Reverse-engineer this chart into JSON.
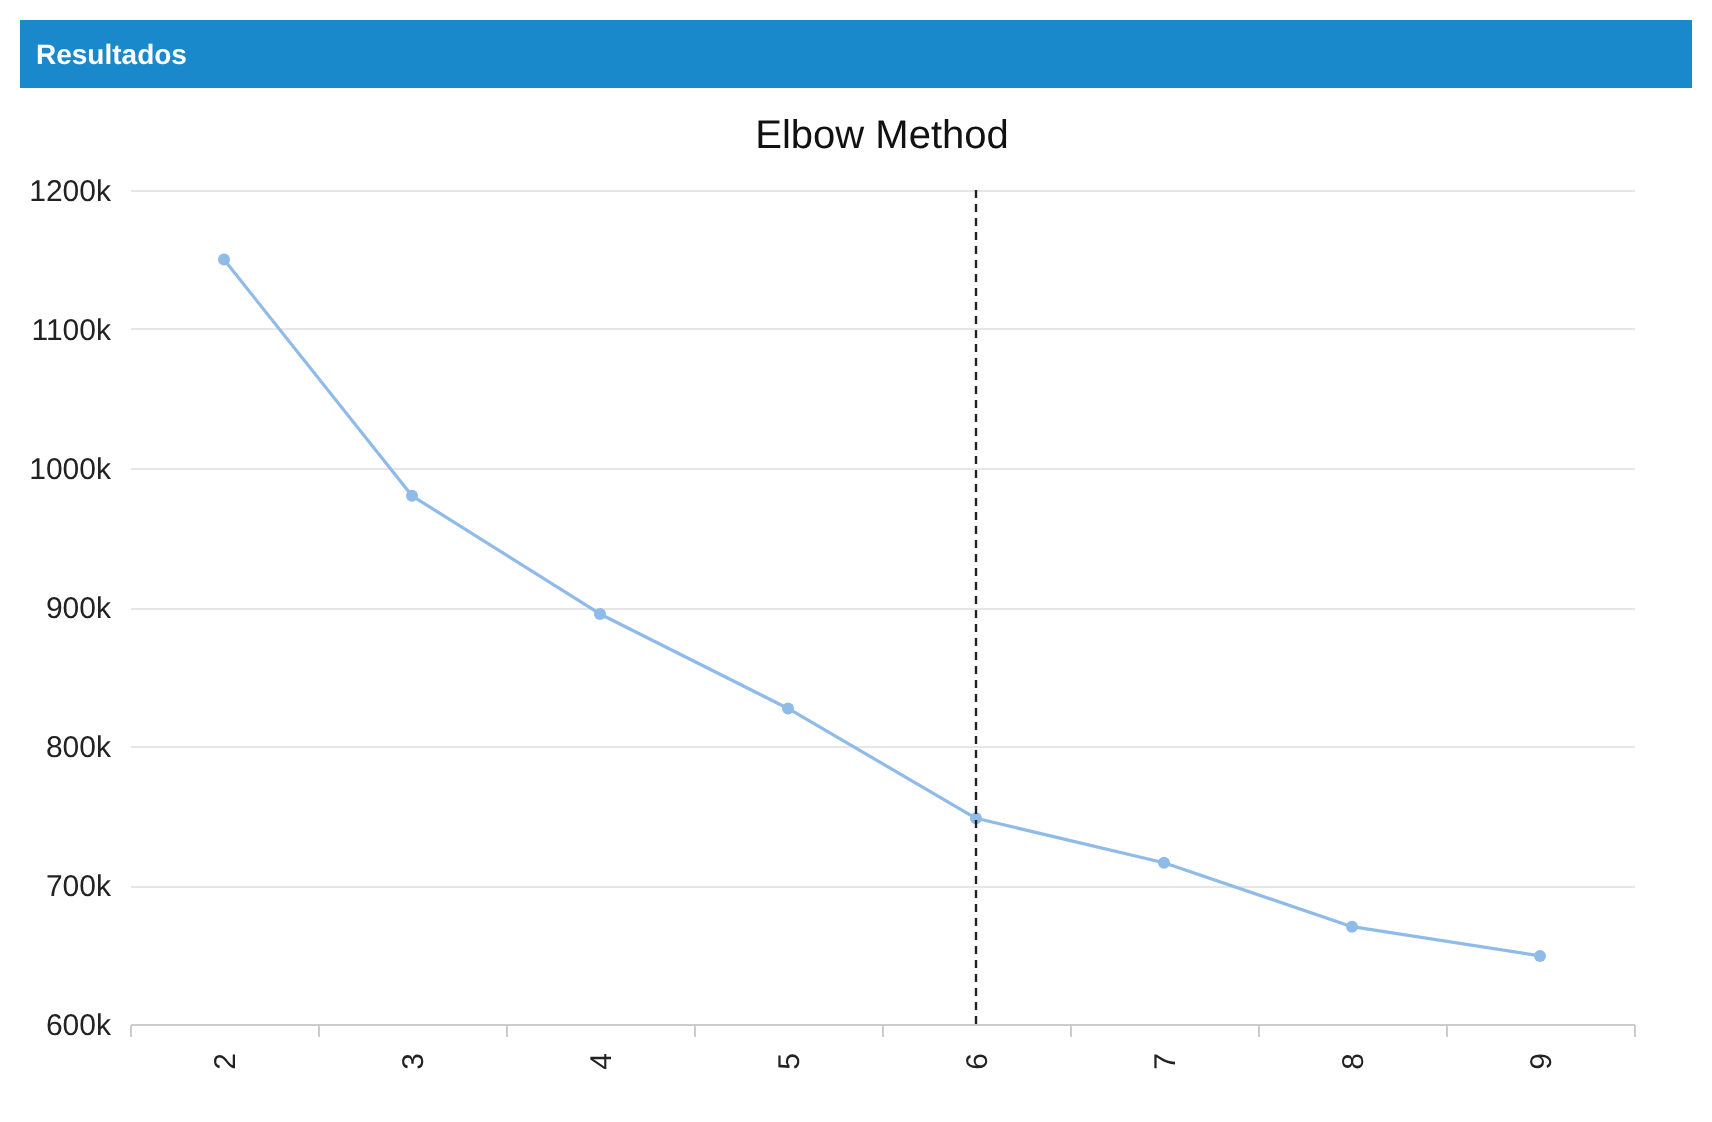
{
  "chart_data": {
    "type": "line",
    "title": "Elbow Method",
    "annotations": [
      "Resultados"
    ],
    "categories": [
      "2",
      "3",
      "4",
      "5",
      "6",
      "7",
      "8",
      "9"
    ],
    "series": [
      {
        "color": "#8fbbe8",
        "values": [
          1150000,
          980000,
          895000,
          827000,
          748000,
          716000,
          670000,
          649000
        ]
      }
    ],
    "ylim": [
      600000,
      1200000
    ],
    "yticks": [
      {
        "value": 600000,
        "label": "600k"
      },
      {
        "value": 700000,
        "label": "700k"
      },
      {
        "value": 800000,
        "label": "800k"
      },
      {
        "value": 900000,
        "label": "900k"
      },
      {
        "value": 1000000,
        "label": "1000k"
      },
      {
        "value": 1100000,
        "label": "1100k"
      },
      {
        "value": 1200000,
        "label": "1200k"
      }
    ],
    "grid": "y",
    "marker": "circle",
    "line_style": "solid",
    "ref_lines": [
      {
        "axis": "x",
        "value": "6",
        "color": "#222222",
        "line_style": "dashed"
      }
    ]
  }
}
